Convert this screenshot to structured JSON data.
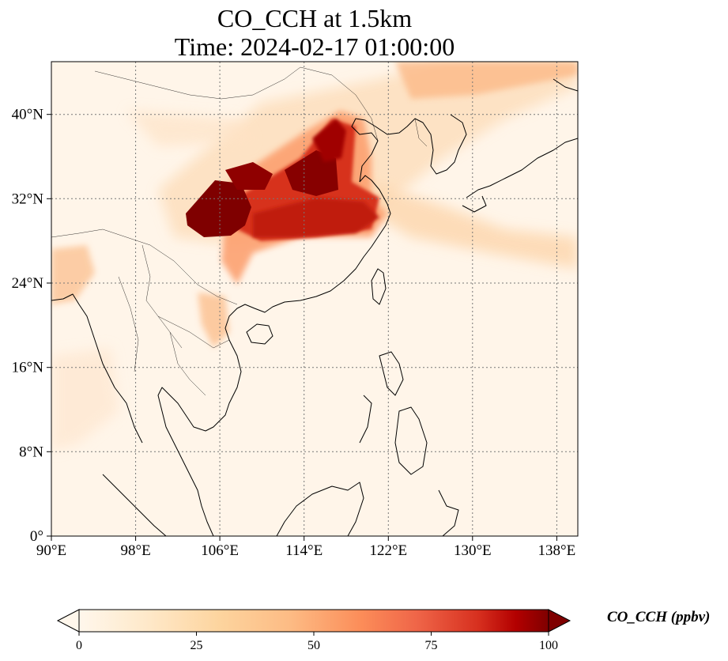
{
  "title": {
    "line1": "CO_CCH at 1.5km",
    "line2": "Time: 2024-02-17 01:00:00"
  },
  "map": {
    "extent_lon": [
      90,
      140
    ],
    "extent_lat": [
      0,
      45
    ],
    "lon_ticks": [
      "90°E",
      "98°E",
      "106°E",
      "114°E",
      "122°E",
      "130°E",
      "138°E"
    ],
    "lat_ticks": [
      "0°",
      "8°N",
      "16°N",
      "24°N",
      "32°N",
      "40°N"
    ],
    "gridlines": "dotted",
    "colormap": "OrRd",
    "colors": {
      "low": "#fff7ec",
      "mid": "#fdbb84",
      "high": "#7f0000",
      "coast": "#000000",
      "grid": "#777777"
    }
  },
  "colorbar": {
    "title": "CO_CCH (ppbv)",
    "ticks": [
      "0",
      "25",
      "50",
      "75",
      "100"
    ],
    "range": [
      0,
      100
    ],
    "extend": "both"
  }
}
